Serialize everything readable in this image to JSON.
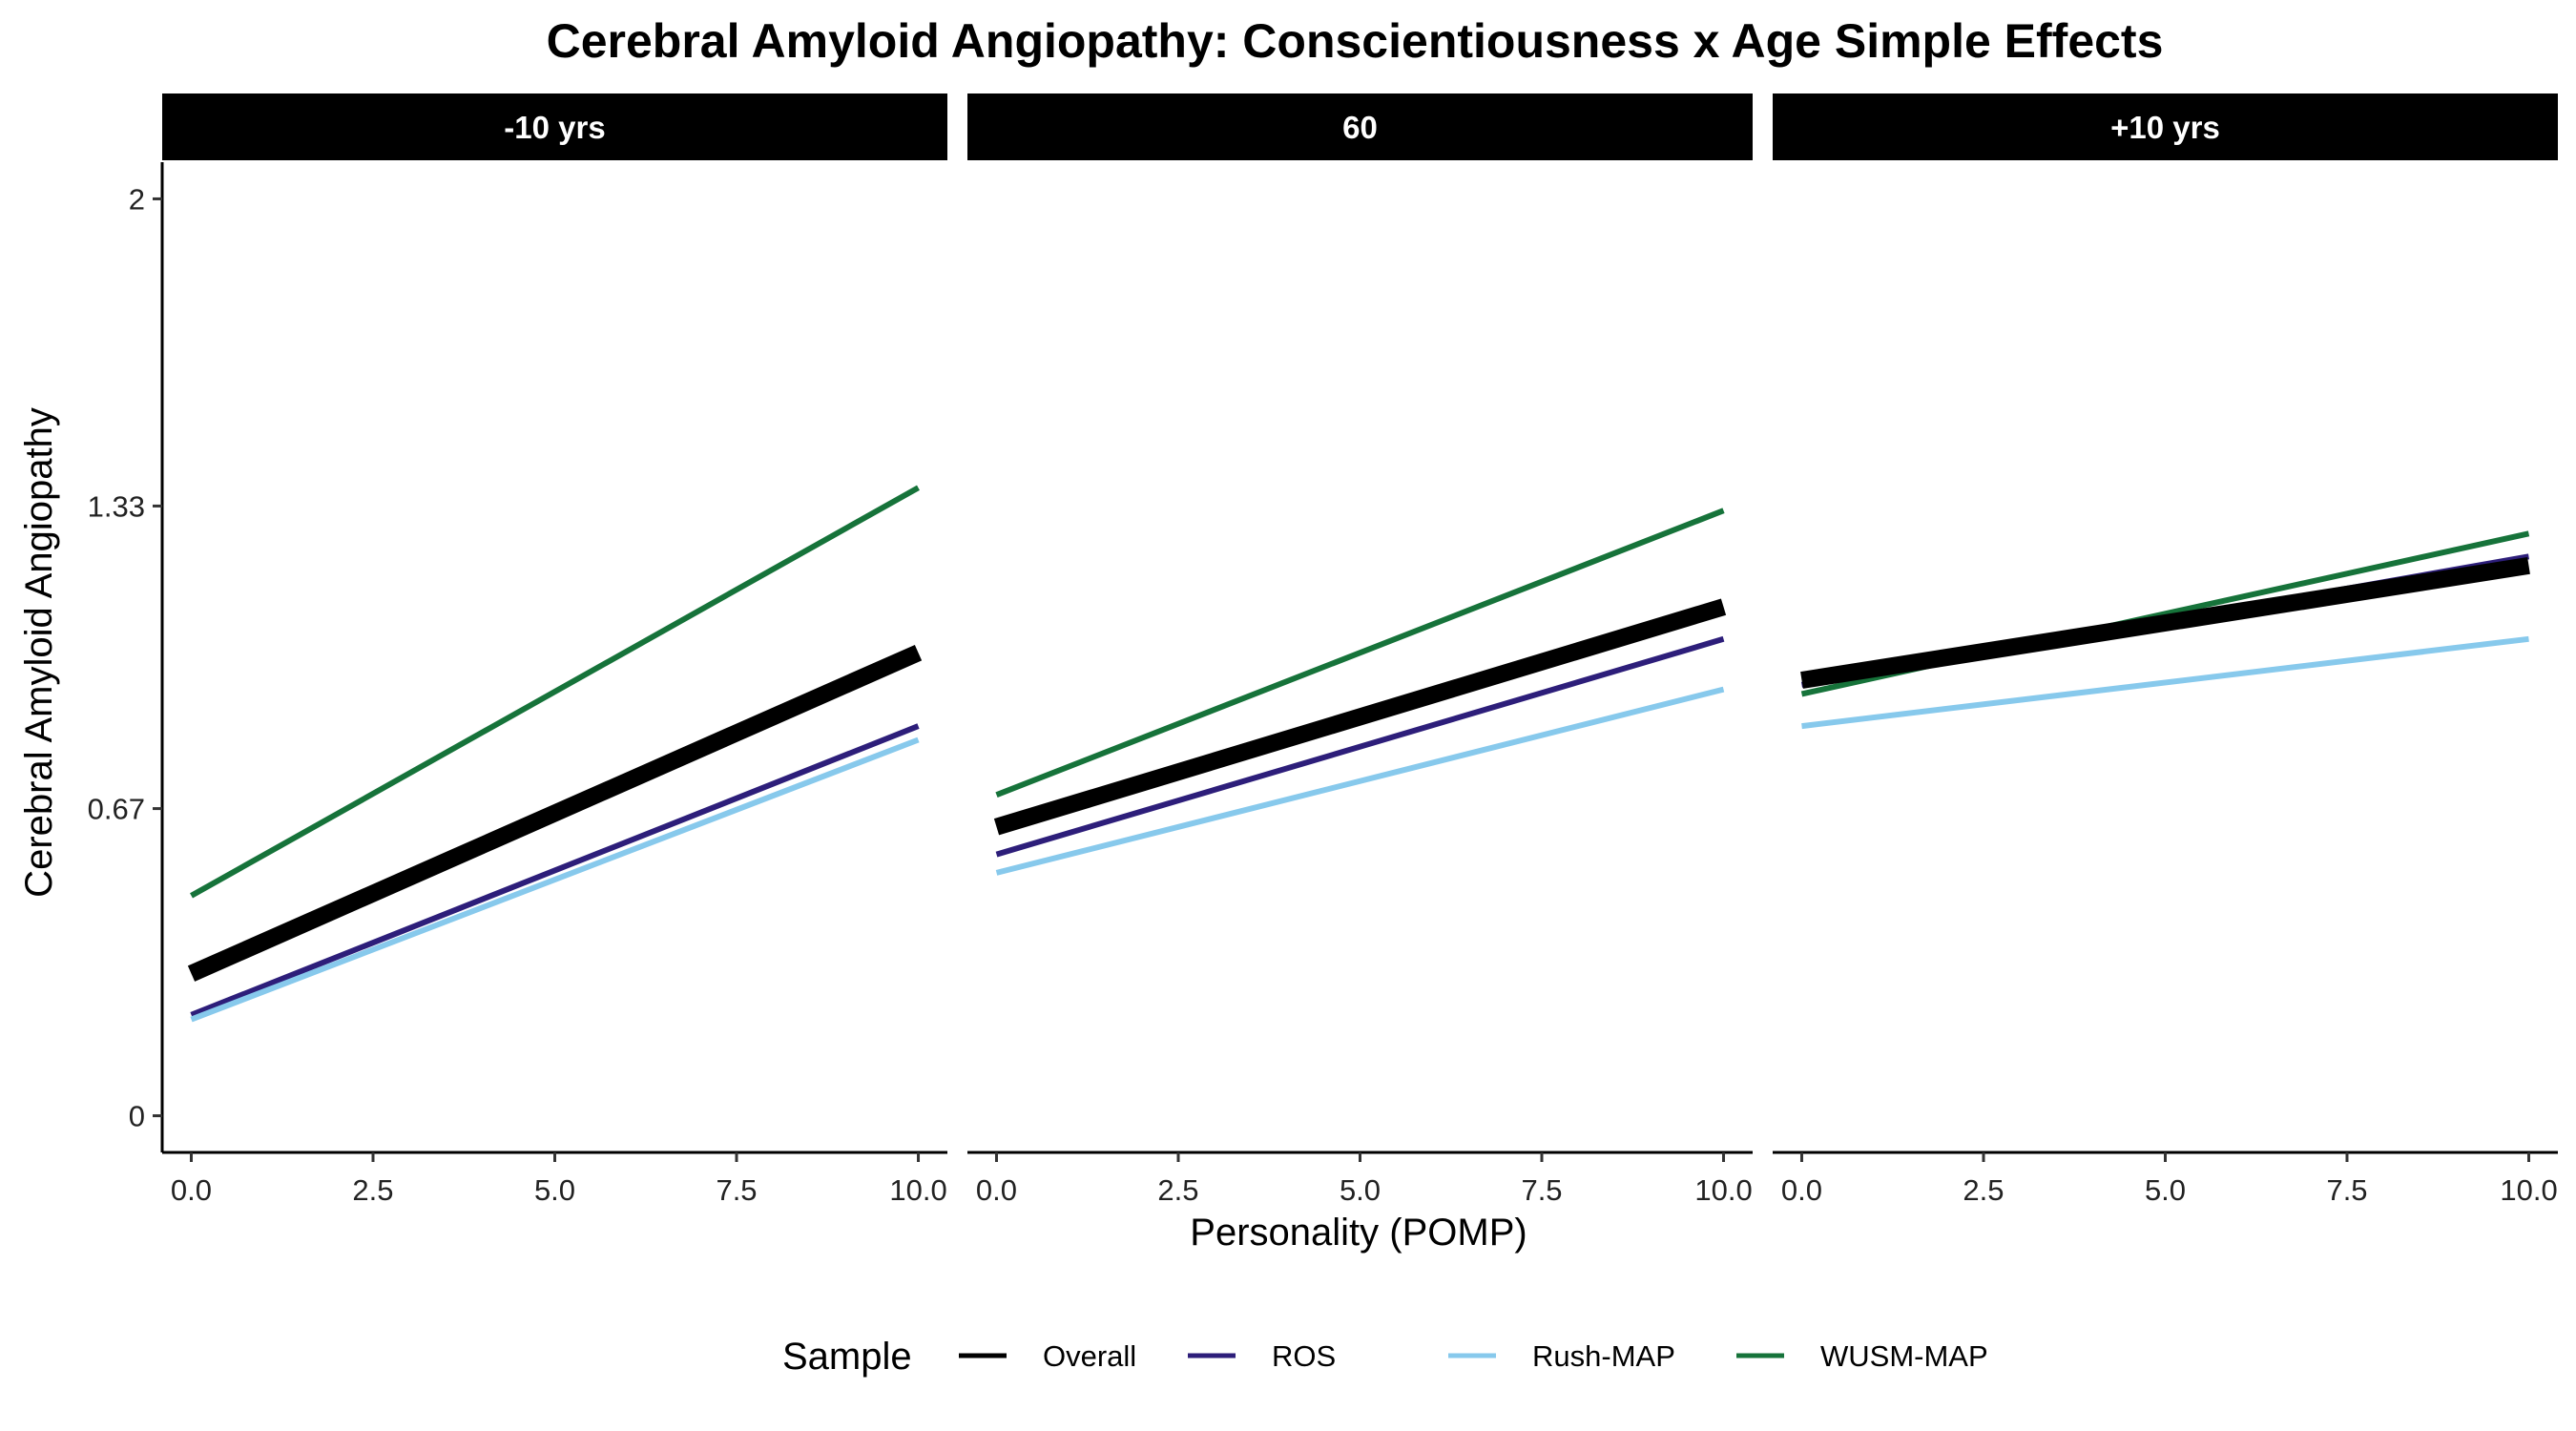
{
  "chart_data": {
    "type": "line",
    "title": "Cerebral Amyloid Angiopathy: Conscientiousness x Age Simple Effects",
    "xlabel": "Personality (POMP)",
    "ylabel": "Cerebral Amyloid Angiopathy",
    "xlim": [
      -0.4,
      10.4
    ],
    "ylim": [
      -0.08,
      2.08
    ],
    "x_ticks": [
      0,
      2.5,
      5,
      7.5,
      10
    ],
    "x_tick_labels": [
      "0.0",
      "2.5",
      "5.0",
      "7.5",
      "10.0"
    ],
    "y_ticks": [
      0,
      0.67,
      1.33,
      2
    ],
    "y_tick_labels": [
      "0",
      "0.67",
      "1.33",
      "2"
    ],
    "grid": false,
    "legend": {
      "title": "Sample",
      "placement": "bottom",
      "entries": [
        "Overall",
        "ROS",
        "Rush-MAP",
        "WUSM-MAP"
      ]
    },
    "series_styles": [
      {
        "name": "Overall",
        "color": "#000000",
        "weight": "thick"
      },
      {
        "name": "ROS",
        "color": "#2d1e7a",
        "weight": "normal"
      },
      {
        "name": "Rush-MAP",
        "color": "#87c9ec",
        "weight": "normal"
      },
      {
        "name": "WUSM-MAP",
        "color": "#16733a",
        "weight": "normal"
      }
    ],
    "panels": [
      {
        "label": "-10 yrs",
        "series": [
          {
            "name": "Overall",
            "x": [
              0,
              10
            ],
            "y": [
              0.31,
              1.01
            ]
          },
          {
            "name": "ROS",
            "x": [
              0,
              10
            ],
            "y": [
              0.22,
              0.85
            ]
          },
          {
            "name": "Rush-MAP",
            "x": [
              0,
              10
            ],
            "y": [
              0.21,
              0.82
            ]
          },
          {
            "name": "WUSM-MAP",
            "x": [
              0,
              10
            ],
            "y": [
              0.48,
              1.37
            ]
          }
        ]
      },
      {
        "label": "60",
        "series": [
          {
            "name": "Overall",
            "x": [
              0,
              10
            ],
            "y": [
              0.63,
              1.11
            ]
          },
          {
            "name": "ROS",
            "x": [
              0,
              10
            ],
            "y": [
              0.57,
              1.04
            ]
          },
          {
            "name": "Rush-MAP",
            "x": [
              0,
              10
            ],
            "y": [
              0.53,
              0.93
            ]
          },
          {
            "name": "WUSM-MAP",
            "x": [
              0,
              10
            ],
            "y": [
              0.7,
              1.32
            ]
          }
        ]
      },
      {
        "label": "+10 yrs",
        "series": [
          {
            "name": "Overall",
            "x": [
              0,
              10
            ],
            "y": [
              0.95,
              1.2
            ]
          },
          {
            "name": "ROS",
            "x": [
              0,
              10
            ],
            "y": [
              0.94,
              1.22
            ]
          },
          {
            "name": "Rush-MAP",
            "x": [
              0,
              10
            ],
            "y": [
              0.85,
              1.04
            ]
          },
          {
            "name": "WUSM-MAP",
            "x": [
              0,
              10
            ],
            "y": [
              0.92,
              1.27
            ]
          }
        ]
      }
    ]
  }
}
